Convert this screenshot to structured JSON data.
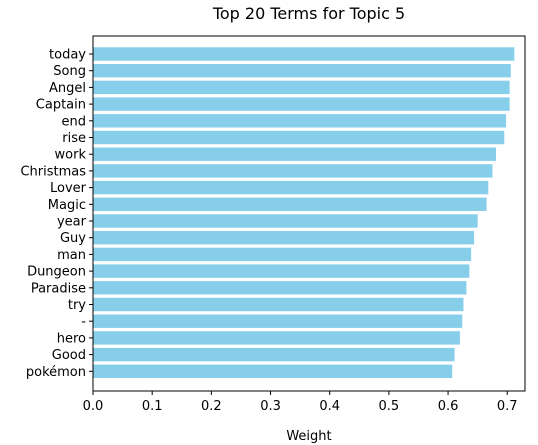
{
  "chart_data": {
    "type": "bar",
    "orientation": "horizontal",
    "title": "Top 20 Terms for Topic 5",
    "xlabel": "Weight",
    "ylabel": "",
    "xlim": [
      0,
      0.73
    ],
    "xticks": [
      "0.0",
      "0.1",
      "0.2",
      "0.3",
      "0.4",
      "0.5",
      "0.6",
      "0.7"
    ],
    "bar_color": "#87CEEB",
    "grid": false,
    "categories": [
      "today",
      "Song",
      "Angel",
      "Captain",
      "end",
      "rise",
      "work",
      "Christmas",
      "Lover",
      "Magic",
      "year",
      "Guy",
      "man",
      "Dungeon",
      "Paradise",
      "try",
      "-",
      "hero",
      "Good",
      "pokémon"
    ],
    "values": [
      0.712,
      0.706,
      0.704,
      0.704,
      0.698,
      0.695,
      0.681,
      0.675,
      0.668,
      0.665,
      0.65,
      0.644,
      0.639,
      0.636,
      0.631,
      0.626,
      0.624,
      0.62,
      0.611,
      0.607
    ]
  }
}
